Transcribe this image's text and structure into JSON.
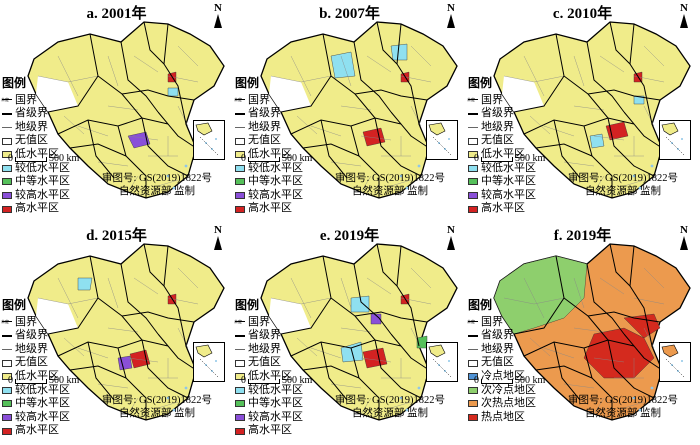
{
  "panels": [
    {
      "title": "a. 2001年",
      "legend": [
        "国界",
        "省级界",
        "地级界",
        "无值区",
        "低水平区",
        "较低水平区",
        "中等水平区",
        "较高水平区",
        "高水平区"
      ]
    },
    {
      "title": "b. 2007年",
      "legend": [
        "国界",
        "省级界",
        "地级界",
        "无值区",
        "低水平区",
        "较低水平区",
        "中等水平区",
        "较高水平区",
        "高水平区"
      ]
    },
    {
      "title": "c. 2010年",
      "legend": [
        "国界",
        "省级界",
        "地级界",
        "无值区",
        "低水平区",
        "较低水平区",
        "中等水平区",
        "较高水平区",
        "高水平区"
      ]
    },
    {
      "title": "d. 2015年",
      "legend": [
        "国界",
        "省级界",
        "地级界",
        "无值区",
        "低水平区",
        "较低水平区",
        "中等水平区",
        "较高水平区",
        "高水平区"
      ]
    },
    {
      "title": "e. 2019年",
      "legend": [
        "国界",
        "省级界",
        "地级界",
        "无值区",
        "低水平区",
        "较低水平区",
        "中等水平区",
        "较高水平区",
        "高水平区"
      ]
    },
    {
      "title": "f. 2019年",
      "legend": [
        "国界",
        "省级界",
        "地级界",
        "无值区",
        "冷点地区",
        "次冷点地区",
        "次热点地区",
        "热点地区"
      ]
    }
  ],
  "legend_title": "图例",
  "north_label": "N",
  "scale_zero": "0",
  "scale_text": "500 km",
  "approval_line1": "审图号: GS(2019)1822号",
  "approval_line2": "自然资源部 监制",
  "colors": {
    "no_value": "#ffffff",
    "low": "#f0ec8a",
    "lower": "#8fe0f0",
    "medium": "#55c05a",
    "higher": "#8a4fd8",
    "high": "#d32222",
    "cold": "#4f93d6",
    "subcold": "#8ecf6d",
    "subhot": "#ec9a4e",
    "hot": "#d42a1e"
  }
}
